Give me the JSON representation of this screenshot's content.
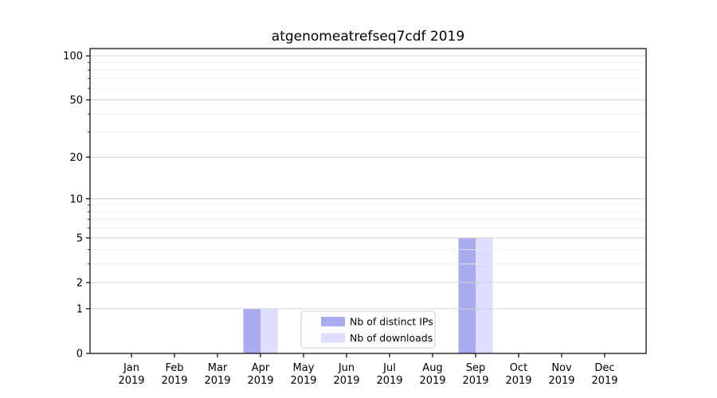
{
  "chart_data": {
    "type": "bar",
    "title": "atgenomeatrefseq7cdf 2019",
    "categories": [
      "Jan",
      "Feb",
      "Mar",
      "Apr",
      "May",
      "Jun",
      "Jul",
      "Aug",
      "Sep",
      "Oct",
      "Nov",
      "Dec"
    ],
    "category_year": "2019",
    "series": [
      {
        "name": "Nb of distinct IPs",
        "color": "#aaaaee",
        "values": [
          0,
          0,
          0,
          1,
          0,
          0,
          0,
          0,
          5,
          0,
          0,
          0
        ]
      },
      {
        "name": "Nb of downloads",
        "color": "#ddddff",
        "values": [
          0,
          0,
          0,
          1,
          0,
          0,
          0,
          0,
          5,
          0,
          0,
          0
        ]
      }
    ],
    "yscale": "log1p",
    "ylim": [
      0,
      112
    ],
    "yticks": [
      0,
      1,
      2,
      5,
      10,
      20,
      50,
      100
    ],
    "yticks_minor": [
      3,
      4,
      6,
      7,
      8,
      9,
      30,
      40,
      60,
      70,
      80,
      90
    ],
    "grid": "horizontal",
    "legend": {
      "position": "lower-center-inside",
      "entries": [
        "Nb of distinct IPs",
        "Nb of downloads"
      ]
    },
    "colors": {
      "axis": "#000000",
      "text": "#000000",
      "grid_major": "#d4d4d4",
      "grid_minor": "#ebebeb",
      "legend_border": "#cccccc",
      "background": "#ffffff"
    }
  }
}
